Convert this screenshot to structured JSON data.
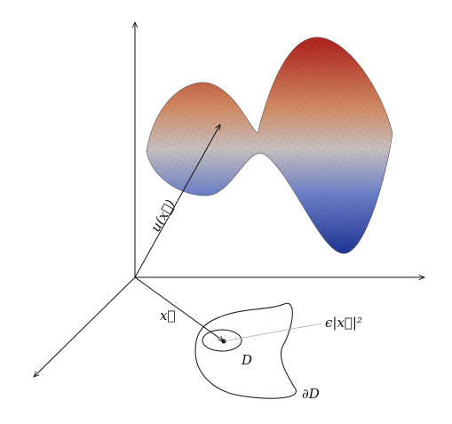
{
  "labels": {
    "u": "u(x⃗)",
    "x": "x⃗",
    "domain": "D",
    "boundary": "∂D",
    "epsilon": "ϵ|x⃗|²"
  }
}
